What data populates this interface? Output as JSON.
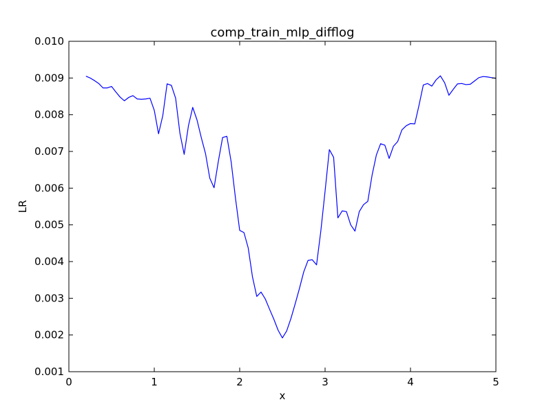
{
  "chart_data": {
    "type": "line",
    "title": "comp_train_mlp_difflog",
    "xlabel": "x",
    "ylabel": "LR",
    "xlim": [
      0,
      5
    ],
    "ylim": [
      0.001,
      0.01
    ],
    "xticks": [
      0,
      1,
      2,
      3,
      4,
      5
    ],
    "xtick_labels": [
      "0",
      "1",
      "2",
      "3",
      "4",
      "5"
    ],
    "yticks": [
      0.001,
      0.002,
      0.003,
      0.004,
      0.005,
      0.006,
      0.007,
      0.008,
      0.009,
      0.01
    ],
    "ytick_labels": [
      "0.001",
      "0.002",
      "0.003",
      "0.004",
      "0.005",
      "0.006",
      "0.007",
      "0.008",
      "0.009",
      "0.010"
    ],
    "grid": false,
    "series": [
      {
        "color": "#0000ff",
        "x": [
          0.2,
          0.25,
          0.3,
          0.35,
          0.4,
          0.45,
          0.5,
          0.55,
          0.6,
          0.65,
          0.7,
          0.75,
          0.8,
          0.85,
          0.9,
          0.95,
          1.0,
          1.05,
          1.1,
          1.15,
          1.2,
          1.25,
          1.3,
          1.35,
          1.4,
          1.45,
          1.5,
          1.55,
          1.6,
          1.65,
          1.7,
          1.75,
          1.8,
          1.85,
          1.9,
          1.95,
          2.0,
          2.05,
          2.1,
          2.15,
          2.2,
          2.25,
          2.3,
          2.35,
          2.4,
          2.45,
          2.5,
          2.55,
          2.6,
          2.65,
          2.7,
          2.75,
          2.8,
          2.85,
          2.9,
          2.95,
          3.0,
          3.05,
          3.1,
          3.15,
          3.2,
          3.25,
          3.3,
          3.35,
          3.4,
          3.45,
          3.5,
          3.55,
          3.6,
          3.65,
          3.7,
          3.75,
          3.8,
          3.85,
          3.9,
          3.95,
          4.0,
          4.05,
          4.1,
          4.15,
          4.2,
          4.25,
          4.3,
          4.35,
          4.4,
          4.45,
          4.5,
          4.55,
          4.6,
          4.65,
          4.7,
          4.75,
          4.8,
          4.85,
          4.9,
          4.95,
          5.0
        ],
        "y": [
          0.00905,
          0.009,
          0.00893,
          0.00885,
          0.00873,
          0.00873,
          0.00877,
          0.00862,
          0.00848,
          0.00838,
          0.00847,
          0.00852,
          0.00843,
          0.00842,
          0.00843,
          0.00845,
          0.00812,
          0.00748,
          0.00798,
          0.00884,
          0.0088,
          0.00845,
          0.0075,
          0.00692,
          0.0077,
          0.0082,
          0.00786,
          0.00738,
          0.00694,
          0.00627,
          0.00601,
          0.00673,
          0.00738,
          0.00741,
          0.00672,
          0.00574,
          0.00485,
          0.00479,
          0.00437,
          0.00358,
          0.00305,
          0.00317,
          0.00298,
          0.0027,
          0.00243,
          0.00213,
          0.00192,
          0.00211,
          0.00245,
          0.00285,
          0.00327,
          0.00372,
          0.00403,
          0.00405,
          0.00391,
          0.00483,
          0.00592,
          0.00705,
          0.00684,
          0.00519,
          0.00538,
          0.00536,
          0.005,
          0.00483,
          0.00536,
          0.00555,
          0.00564,
          0.00635,
          0.0069,
          0.00721,
          0.00717,
          0.00681,
          0.00714,
          0.00727,
          0.00759,
          0.0077,
          0.00776,
          0.00775,
          0.00826,
          0.00881,
          0.00885,
          0.00878,
          0.00895,
          0.00906,
          0.00887,
          0.00853,
          0.00869,
          0.00884,
          0.00885,
          0.00882,
          0.00883,
          0.00892,
          0.00901,
          0.00904,
          0.00903,
          0.00901,
          0.00899
        ]
      }
    ]
  }
}
